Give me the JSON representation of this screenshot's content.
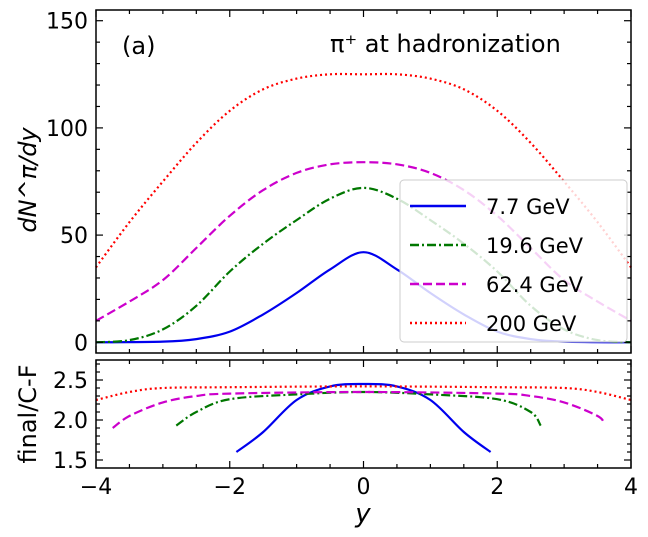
{
  "chart_data": [
    {
      "type": "line",
      "panel_label": "(a)",
      "annotation": "π⁺ at hadronization",
      "ylabel": "dN^π/dy",
      "xlim": [
        -4,
        4
      ],
      "ylim": [
        -5,
        155
      ],
      "yticks": [
        0,
        50,
        100,
        150
      ],
      "legend_position": "center-right",
      "series": [
        {
          "name": "7.7 GeV",
          "color": "#0000ee",
          "dash": "solid",
          "x": [
            -4.0,
            -3.0,
            -2.5,
            -2.0,
            -1.5,
            -1.0,
            -0.5,
            0.0,
            0.5,
            1.0,
            1.5,
            2.0,
            2.5,
            3.0,
            4.0
          ],
          "y": [
            0,
            0.3,
            1.5,
            5,
            13,
            23,
            34,
            42,
            34,
            23,
            13,
            5,
            1.5,
            0.3,
            0
          ]
        },
        {
          "name": "19.6 GeV",
          "color": "#007700",
          "dash": "dashdot",
          "x": [
            -4.0,
            -3.5,
            -3.0,
            -2.5,
            -2.0,
            -1.5,
            -1.0,
            -0.5,
            0.0,
            0.5,
            1.0,
            1.5,
            2.0,
            2.5,
            3.0,
            3.5,
            4.0
          ],
          "y": [
            0,
            1,
            6,
            17,
            33,
            46,
            57,
            67,
            72,
            67,
            57,
            46,
            33,
            17,
            6,
            1,
            0
          ]
        },
        {
          "name": "62.4 GeV",
          "color": "#cc00cc",
          "dash": "dashed",
          "x": [
            -4.0,
            -3.5,
            -3.0,
            -2.5,
            -2.0,
            -1.5,
            -1.0,
            -0.5,
            0.0,
            0.5,
            1.0,
            1.5,
            2.0,
            2.5,
            3.0,
            3.5,
            4.0
          ],
          "y": [
            10,
            19,
            29,
            44,
            59,
            71,
            79,
            83,
            84,
            83,
            79,
            71,
            59,
            44,
            29,
            19,
            10
          ]
        },
        {
          "name": "200 GeV",
          "color": "#ff0000",
          "dash": "dotted",
          "x": [
            -4.0,
            -3.5,
            -3.0,
            -2.5,
            -2.0,
            -1.5,
            -1.0,
            -0.5,
            0.0,
            0.5,
            1.0,
            1.5,
            2.0,
            2.5,
            3.0,
            3.5,
            4.0
          ],
          "y": [
            35,
            56,
            75,
            93,
            108,
            118,
            123,
            125,
            125,
            125,
            123,
            118,
            108,
            93,
            75,
            56,
            35
          ]
        }
      ]
    },
    {
      "type": "line",
      "ylabel": "final/C-F",
      "xlabel": "y",
      "xlim": [
        -4,
        4
      ],
      "ylim": [
        1.4,
        2.75
      ],
      "xticks": [
        -4,
        -2,
        0,
        2,
        4
      ],
      "xtick_labels": [
        "−4",
        "−2",
        "0",
        "2",
        "4"
      ],
      "yticks": [
        1.5,
        2.0,
        2.5
      ],
      "ytick_labels": [
        "1.5",
        "2.0",
        "2.5"
      ],
      "series": [
        {
          "name": "7.7 GeV",
          "color": "#0000ee",
          "dash": "solid",
          "x": [
            -1.9,
            -1.5,
            -1.0,
            -0.5,
            0.0,
            0.5,
            1.0,
            1.5,
            1.9
          ],
          "y": [
            1.6,
            1.85,
            2.25,
            2.42,
            2.45,
            2.42,
            2.25,
            1.85,
            1.6
          ]
        },
        {
          "name": "19.6 GeV",
          "color": "#007700",
          "dash": "dashdot",
          "x": [
            -2.8,
            -2.5,
            -2.0,
            -1.0,
            0.0,
            1.0,
            2.0,
            2.5,
            2.65
          ],
          "y": [
            1.93,
            2.1,
            2.26,
            2.32,
            2.35,
            2.32,
            2.26,
            2.1,
            1.93
          ]
        },
        {
          "name": "62.4 GeV",
          "color": "#cc00cc",
          "dash": "dashed",
          "x": [
            -3.75,
            -3.5,
            -3.0,
            -2.5,
            -2.0,
            0.0,
            2.0,
            2.5,
            3.0,
            3.5,
            3.6
          ],
          "y": [
            1.9,
            2.05,
            2.22,
            2.3,
            2.33,
            2.35,
            2.33,
            2.3,
            2.22,
            2.05,
            1.95
          ]
        },
        {
          "name": "200 GeV",
          "color": "#ff0000",
          "dash": "dotted",
          "x": [
            -4.0,
            -3.5,
            -3.0,
            -2.0,
            0.0,
            2.0,
            3.0,
            3.5,
            4.0
          ],
          "y": [
            2.25,
            2.35,
            2.4,
            2.41,
            2.42,
            2.41,
            2.4,
            2.35,
            2.25
          ]
        }
      ]
    }
  ]
}
